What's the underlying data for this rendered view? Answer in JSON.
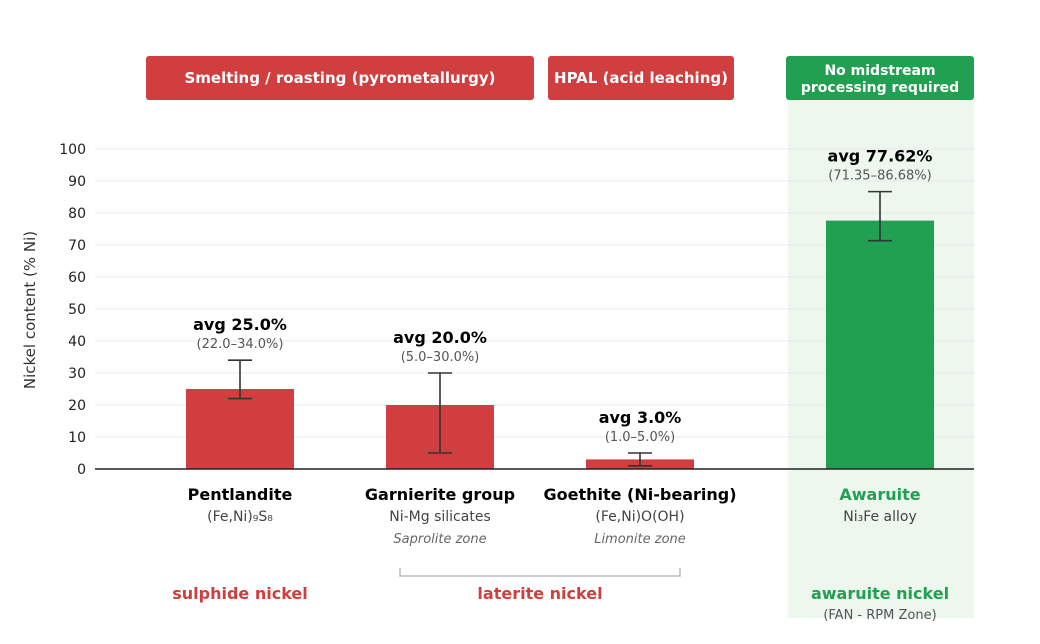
{
  "colors": {
    "red": "#d03e3f",
    "green": "#22a052",
    "highlight_bg": "#edf7ee",
    "grid": "#e9e9e9",
    "axis": "#222222",
    "error_bar": "#333333",
    "bracket": "#bbbbbb"
  },
  "process_bands": [
    {
      "label_lines": [
        "Smelting / roasting (pyrometallurgy)"
      ],
      "color": "red"
    },
    {
      "label_lines": [
        "HPAL (acid leaching)"
      ],
      "color": "red"
    },
    {
      "label_lines": [
        "No midstream",
        "processing required"
      ],
      "color": "green"
    }
  ],
  "chart_data": {
    "type": "bar",
    "ylabel": "Nickel content (% Ni)",
    "ylim": [
      0,
      100
    ],
    "yticks": [
      0,
      10,
      20,
      30,
      40,
      50,
      60,
      70,
      80,
      90,
      100
    ],
    "grid": true,
    "categories": [
      "Pentlandite",
      "Garnierite group",
      "Goethite (Ni-bearing)",
      "Awaruite"
    ],
    "values": [
      25.0,
      20.0,
      3.0,
      77.62
    ],
    "error_low": [
      22.0,
      5.0,
      1.0,
      71.35
    ],
    "error_high": [
      34.0,
      30.0,
      5.0,
      86.68
    ],
    "avg_labels": [
      "avg 25.0%",
      "avg 20.0%",
      "avg 3.0%",
      "avg 77.62%"
    ],
    "range_labels": [
      "(22.0–34.0%)",
      "(5.0–30.0%)",
      "(1.0–5.0%)",
      "(71.35–86.68%)"
    ],
    "formulas": [
      "(Fe,Ni)₉S₈",
      "Ni-Mg silicates",
      "(Fe,Ni)O(OH)",
      "Ni₃Fe alloy"
    ],
    "zones": [
      "",
      "Saprolite zone",
      "Limonite zone",
      ""
    ],
    "bar_colors": [
      "red",
      "red",
      "red",
      "green"
    ],
    "name_colors": [
      "black",
      "black",
      "black",
      "green"
    ],
    "groups": [
      {
        "label": "sulphide nickel",
        "sub": "",
        "color": "red"
      },
      {
        "label": "laterite nickel",
        "sub": "",
        "color": "red"
      },
      {
        "label": "awaruite nickel",
        "sub": "(FAN - RPM Zone)",
        "color": "green"
      }
    ]
  }
}
